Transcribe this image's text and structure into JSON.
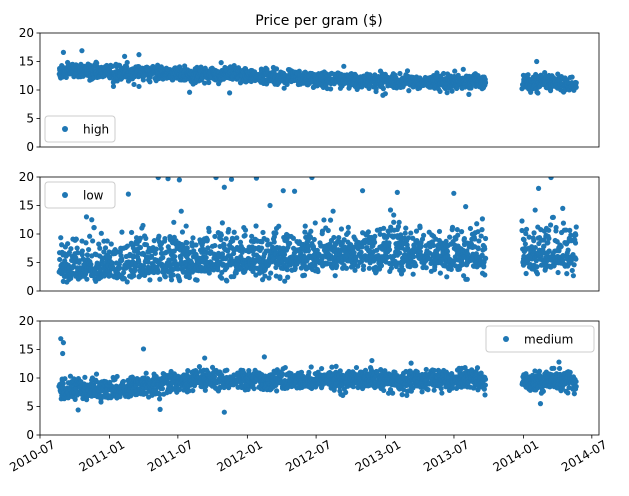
{
  "chart_data": {
    "type": "scatter",
    "title": "Price per gram ($)",
    "x_axis": {
      "type": "date",
      "tick_labels": [
        "2010-07",
        "2011-01",
        "2011-07",
        "2012-01",
        "2012-07",
        "2013-01",
        "2013-07",
        "2014-01",
        "2014-07"
      ],
      "range": [
        "2010-07-01",
        "2014-07-20"
      ],
      "tick_rotation_deg": 30
    },
    "marker_color": "#1f77b4",
    "grid": false,
    "shared_y_ticks": [
      "0",
      "5",
      "10",
      "15",
      "20"
    ],
    "panels": [
      {
        "id": "high",
        "legend_label": "high",
        "legend_loc": "lower-left",
        "ylim": [
          0,
          20
        ],
        "series_trend": [
          {
            "date": "2010-09-01",
            "value": 13.5
          },
          {
            "date": "2011-01-01",
            "value": 13.0
          },
          {
            "date": "2011-07-01",
            "value": 12.8
          },
          {
            "date": "2012-01-01",
            "value": 12.6
          },
          {
            "date": "2012-07-01",
            "value": 11.9
          },
          {
            "date": "2013-01-01",
            "value": 11.6
          },
          {
            "date": "2013-07-01",
            "value": 11.3
          },
          {
            "date": "2013-09-20",
            "value": 11.4
          },
          {
            "date": "2014-01-01",
            "value": 11.3
          },
          {
            "date": "2014-05-15",
            "value": 10.9
          }
        ],
        "spread": 0.9,
        "outliers": [
          {
            "date": "2010-09-01",
            "value": 16.6
          },
          {
            "date": "2010-10-20",
            "value": 16.9
          },
          {
            "date": "2011-02-10",
            "value": 15.9
          },
          {
            "date": "2011-03-20",
            "value": 16.2
          },
          {
            "date": "2011-08-01",
            "value": 9.6
          },
          {
            "date": "2011-11-15",
            "value": 9.5
          },
          {
            "date": "2014-02-05",
            "value": 15.0
          },
          {
            "date": "2014-01-20",
            "value": 9.6
          }
        ]
      },
      {
        "id": "low",
        "legend_label": "low",
        "legend_loc": "upper-left",
        "ylim": [
          0,
          20
        ],
        "series_trend": [
          {
            "date": "2010-09-01",
            "value": 4.5
          },
          {
            "date": "2011-01-01",
            "value": 4.5
          },
          {
            "date": "2011-07-01",
            "value": 4.8
          },
          {
            "date": "2012-01-01",
            "value": 5.5
          },
          {
            "date": "2012-07-01",
            "value": 6.3
          },
          {
            "date": "2013-01-01",
            "value": 6.5
          },
          {
            "date": "2013-07-01",
            "value": 6.0
          },
          {
            "date": "2013-09-20",
            "value": 6.0
          },
          {
            "date": "2014-01-01",
            "value": 6.3
          },
          {
            "date": "2014-05-15",
            "value": 6.2
          }
        ],
        "spread": 2.6,
        "outliers": [
          {
            "date": "2011-05-10",
            "value": 19.9
          },
          {
            "date": "2011-06-05",
            "value": 19.7
          },
          {
            "date": "2011-07-05",
            "value": 19.5
          },
          {
            "date": "2011-10-10",
            "value": 19.9
          },
          {
            "date": "2011-11-20",
            "value": 19.6
          },
          {
            "date": "2012-01-25",
            "value": 19.8
          },
          {
            "date": "2012-06-20",
            "value": 19.9
          },
          {
            "date": "2011-11-01",
            "value": 18.2
          },
          {
            "date": "2012-04-05",
            "value": 17.6
          },
          {
            "date": "2012-05-05",
            "value": 17.5
          },
          {
            "date": "2012-11-01",
            "value": 17.6
          },
          {
            "date": "2013-02-01",
            "value": 17.3
          },
          {
            "date": "2014-02-10",
            "value": 18.0
          },
          {
            "date": "2014-03-15",
            "value": 19.9
          },
          {
            "date": "2011-02-20",
            "value": 17.0
          },
          {
            "date": "2010-11-01",
            "value": 13.0
          },
          {
            "date": "2010-11-15",
            "value": 12.5
          },
          {
            "date": "2011-07-10",
            "value": 14.0
          },
          {
            "date": "2012-03-01",
            "value": 15.0
          },
          {
            "date": "2012-08-15",
            "value": 14.0
          },
          {
            "date": "2013-08-01",
            "value": 14.8
          },
          {
            "date": "2014-02-01",
            "value": 14.2
          },
          {
            "date": "2014-04-15",
            "value": 14.5
          }
        ]
      },
      {
        "id": "medium",
        "legend_label": "medium",
        "legend_loc": "upper-right",
        "ylim": [
          0,
          20
        ],
        "series_trend": [
          {
            "date": "2010-09-01",
            "value": 8.2
          },
          {
            "date": "2011-01-01",
            "value": 8.0
          },
          {
            "date": "2011-07-01",
            "value": 9.3
          },
          {
            "date": "2012-01-01",
            "value": 9.7
          },
          {
            "date": "2012-07-01",
            "value": 9.7
          },
          {
            "date": "2013-01-01",
            "value": 9.6
          },
          {
            "date": "2013-07-01",
            "value": 9.7
          },
          {
            "date": "2013-09-20",
            "value": 9.8
          },
          {
            "date": "2014-01-01",
            "value": 9.6
          },
          {
            "date": "2014-05-15",
            "value": 9.4
          }
        ],
        "spread": 1.2,
        "outliers": [
          {
            "date": "2010-08-25",
            "value": 16.9
          },
          {
            "date": "2010-09-01",
            "value": 16.2
          },
          {
            "date": "2010-08-30",
            "value": 14.3
          },
          {
            "date": "2011-04-01",
            "value": 15.1
          },
          {
            "date": "2011-09-10",
            "value": 13.5
          },
          {
            "date": "2012-02-15",
            "value": 13.7
          },
          {
            "date": "2014-04-05",
            "value": 12.8
          },
          {
            "date": "2011-05-15",
            "value": 4.5
          },
          {
            "date": "2011-11-01",
            "value": 4.0
          },
          {
            "date": "2010-10-10",
            "value": 4.4
          },
          {
            "date": "2014-02-15",
            "value": 5.5
          }
        ]
      }
    ]
  }
}
